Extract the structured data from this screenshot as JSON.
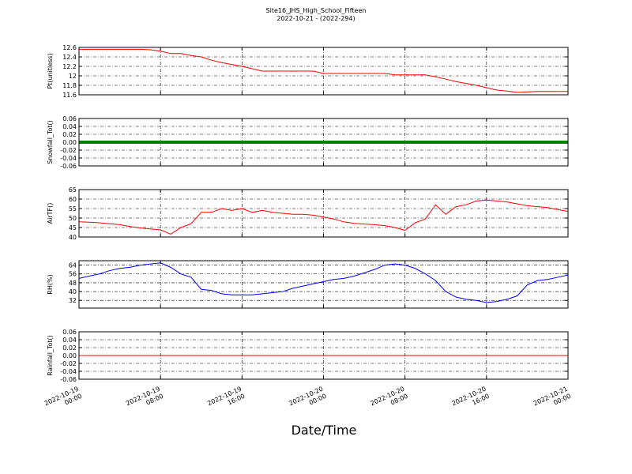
{
  "chart_data": [
    {
      "type": "line",
      "title": "Site16_JHS_High_School_Fifteen",
      "subtitle": "2022-10-21 - (2022-294)",
      "ylabel": "Pt(unitless)",
      "ylim": [
        11.6,
        12.6
      ],
      "yticks": [
        11.6,
        11.8,
        12.0,
        12.2,
        12.4,
        12.6
      ],
      "grid": true,
      "x": [
        "2022-10-19 00:00",
        "2022-10-19 01:00",
        "2022-10-19 02:00",
        "2022-10-19 03:00",
        "2022-10-19 04:00",
        "2022-10-19 05:00",
        "2022-10-19 06:00",
        "2022-10-19 07:00",
        "2022-10-19 08:00",
        "2022-10-19 09:00",
        "2022-10-19 10:00",
        "2022-10-19 11:00",
        "2022-10-19 12:00",
        "2022-10-19 13:00",
        "2022-10-19 14:00",
        "2022-10-19 15:00",
        "2022-10-19 16:00",
        "2022-10-19 17:00",
        "2022-10-19 18:00",
        "2022-10-19 19:00",
        "2022-10-19 20:00",
        "2022-10-19 21:00",
        "2022-10-19 22:00",
        "2022-10-19 23:00",
        "2022-10-20 00:00",
        "2022-10-20 01:00",
        "2022-10-20 02:00",
        "2022-10-20 03:00",
        "2022-10-20 04:00",
        "2022-10-20 05:00",
        "2022-10-20 06:00",
        "2022-10-20 07:00",
        "2022-10-20 08:00",
        "2022-10-20 09:00",
        "2022-10-20 10:00",
        "2022-10-20 11:00",
        "2022-10-20 12:00",
        "2022-10-20 13:00",
        "2022-10-20 14:00",
        "2022-10-20 15:00",
        "2022-10-20 16:00",
        "2022-10-20 17:00",
        "2022-10-20 18:00",
        "2022-10-20 19:00",
        "2022-10-20 20:00",
        "2022-10-20 21:00",
        "2022-10-20 22:00",
        "2022-10-20 23:00",
        "2022-10-21 00:00"
      ],
      "series": [
        {
          "color": "#ff0000",
          "values": [
            12.56,
            12.56,
            12.56,
            12.56,
            12.56,
            12.56,
            12.56,
            12.55,
            12.52,
            12.47,
            12.47,
            12.43,
            12.4,
            12.33,
            12.28,
            12.24,
            12.2,
            12.15,
            12.1,
            12.1,
            12.1,
            12.1,
            12.1,
            12.1,
            12.05,
            12.05,
            12.05,
            12.05,
            12.05,
            12.05,
            12.05,
            12.02,
            12.02,
            12.02,
            12.02,
            11.98,
            11.93,
            11.88,
            11.84,
            11.8,
            11.75,
            11.7,
            11.68,
            11.65,
            11.66,
            11.67,
            11.67,
            11.67,
            11.67
          ]
        }
      ]
    },
    {
      "type": "line",
      "ylabel": "Snowfall_Tot()",
      "ylim": [
        -0.06,
        0.06
      ],
      "yticks": [
        -0.06,
        -0.04,
        -0.02,
        {
          "value": 0,
          "label": "0.00"
        },
        0.02,
        0.04,
        0.06
      ],
      "grid": true,
      "x": [
        "2022-10-19 00:00",
        "2022-10-19 01:00",
        "2022-10-19 02:00",
        "2022-10-19 03:00",
        "2022-10-19 04:00",
        "2022-10-19 05:00",
        "2022-10-19 06:00",
        "2022-10-19 07:00",
        "2022-10-19 08:00",
        "2022-10-19 09:00",
        "2022-10-19 10:00",
        "2022-10-19 11:00",
        "2022-10-19 12:00",
        "2022-10-19 13:00",
        "2022-10-19 14:00",
        "2022-10-19 15:00",
        "2022-10-19 16:00",
        "2022-10-19 17:00",
        "2022-10-19 18:00",
        "2022-10-19 19:00",
        "2022-10-19 20:00",
        "2022-10-19 21:00",
        "2022-10-19 22:00",
        "2022-10-19 23:00",
        "2022-10-20 00:00",
        "2022-10-20 01:00",
        "2022-10-20 02:00",
        "2022-10-20 03:00",
        "2022-10-20 04:00",
        "2022-10-20 05:00",
        "2022-10-20 06:00",
        "2022-10-20 07:00",
        "2022-10-20 08:00",
        "2022-10-20 09:00",
        "2022-10-20 10:00",
        "2022-10-20 11:00",
        "2022-10-20 12:00",
        "2022-10-20 13:00",
        "2022-10-20 14:00",
        "2022-10-20 15:00",
        "2022-10-20 16:00",
        "2022-10-20 17:00",
        "2022-10-20 18:00",
        "2022-10-20 19:00",
        "2022-10-20 20:00",
        "2022-10-20 21:00",
        "2022-10-20 22:00",
        "2022-10-20 23:00",
        "2022-10-21 00:00"
      ],
      "series": [
        {
          "color": "#008000",
          "width": 4,
          "values": [
            0,
            0,
            0,
            0,
            0,
            0,
            0,
            0,
            0,
            0,
            0,
            0,
            0,
            0,
            0,
            0,
            0,
            0,
            0,
            0,
            0,
            0,
            0,
            0,
            0,
            0,
            0,
            0,
            0,
            0,
            0,
            0,
            0,
            0,
            0,
            0,
            0,
            0,
            0,
            0,
            0,
            0,
            0,
            0,
            0,
            0,
            0,
            0,
            0
          ]
        }
      ]
    },
    {
      "type": "line",
      "ylabel": "AirTF()",
      "ylim": [
        40,
        65
      ],
      "yticks": [
        40,
        45,
        50,
        55,
        60,
        65
      ],
      "grid": true,
      "x": [
        "2022-10-19 00:00",
        "2022-10-19 01:00",
        "2022-10-19 02:00",
        "2022-10-19 03:00",
        "2022-10-19 04:00",
        "2022-10-19 05:00",
        "2022-10-19 06:00",
        "2022-10-19 07:00",
        "2022-10-19 08:00",
        "2022-10-19 09:00",
        "2022-10-19 10:00",
        "2022-10-19 11:00",
        "2022-10-19 12:00",
        "2022-10-19 13:00",
        "2022-10-19 14:00",
        "2022-10-19 15:00",
        "2022-10-19 16:00",
        "2022-10-19 17:00",
        "2022-10-19 18:00",
        "2022-10-19 19:00",
        "2022-10-19 20:00",
        "2022-10-19 21:00",
        "2022-10-19 22:00",
        "2022-10-19 23:00",
        "2022-10-20 00:00",
        "2022-10-20 01:00",
        "2022-10-20 02:00",
        "2022-10-20 03:00",
        "2022-10-20 04:00",
        "2022-10-20 05:00",
        "2022-10-20 06:00",
        "2022-10-20 07:00",
        "2022-10-20 08:00",
        "2022-10-20 09:00",
        "2022-10-20 10:00",
        "2022-10-20 11:00",
        "2022-10-20 12:00",
        "2022-10-20 13:00",
        "2022-10-20 14:00",
        "2022-10-20 15:00",
        "2022-10-20 16:00",
        "2022-10-20 17:00",
        "2022-10-20 18:00",
        "2022-10-20 19:00",
        "2022-10-20 20:00",
        "2022-10-20 21:00",
        "2022-10-20 22:00",
        "2022-10-20 23:00",
        "2022-10-21 00:00"
      ],
      "series": [
        {
          "color": "#ff0000",
          "values": [
            48,
            47.8,
            47.5,
            47,
            46.5,
            45.5,
            44.8,
            44.2,
            43.8,
            41.5,
            45,
            47,
            53,
            53,
            55,
            54,
            55,
            53,
            54,
            53,
            52.5,
            52,
            52,
            51.5,
            50.5,
            49.5,
            48,
            47.2,
            46.8,
            46.5,
            46,
            45,
            43.5,
            47.5,
            49.5,
            57,
            52,
            56,
            57,
            59,
            59.5,
            59,
            58.5,
            57.5,
            56.5,
            56,
            55.5,
            54.5,
            53.5
          ]
        }
      ]
    },
    {
      "type": "line",
      "ylabel": "RH(%)",
      "ylim": [
        25,
        68
      ],
      "yticks": [
        32,
        40,
        48,
        56,
        64
      ],
      "grid": true,
      "x": [
        "2022-10-19 00:00",
        "2022-10-19 01:00",
        "2022-10-19 02:00",
        "2022-10-19 03:00",
        "2022-10-19 04:00",
        "2022-10-19 05:00",
        "2022-10-19 06:00",
        "2022-10-19 07:00",
        "2022-10-19 08:00",
        "2022-10-19 09:00",
        "2022-10-19 10:00",
        "2022-10-19 11:00",
        "2022-10-19 12:00",
        "2022-10-19 13:00",
        "2022-10-19 14:00",
        "2022-10-19 15:00",
        "2022-10-19 16:00",
        "2022-10-19 17:00",
        "2022-10-19 18:00",
        "2022-10-19 19:00",
        "2022-10-19 20:00",
        "2022-10-19 21:00",
        "2022-10-19 22:00",
        "2022-10-19 23:00",
        "2022-10-20 00:00",
        "2022-10-20 01:00",
        "2022-10-20 02:00",
        "2022-10-20 03:00",
        "2022-10-20 04:00",
        "2022-10-20 05:00",
        "2022-10-20 06:00",
        "2022-10-20 07:00",
        "2022-10-20 08:00",
        "2022-10-20 09:00",
        "2022-10-20 10:00",
        "2022-10-20 11:00",
        "2022-10-20 12:00",
        "2022-10-20 13:00",
        "2022-10-20 14:00",
        "2022-10-20 15:00",
        "2022-10-20 16:00",
        "2022-10-20 17:00",
        "2022-10-20 18:00",
        "2022-10-20 19:00",
        "2022-10-20 20:00",
        "2022-10-20 21:00",
        "2022-10-20 22:00",
        "2022-10-20 23:00",
        "2022-10-21 00:00"
      ],
      "series": [
        {
          "color": "#0000ff",
          "values": [
            52,
            54,
            56,
            59,
            61,
            62,
            64,
            65,
            66,
            62,
            56,
            53,
            42,
            41,
            38,
            37,
            37,
            37,
            38,
            39,
            40,
            43,
            45,
            47,
            49,
            51,
            52,
            54,
            57,
            60,
            64,
            65,
            64,
            61,
            56,
            50,
            40,
            35,
            33,
            32,
            30,
            31,
            33,
            36,
            46,
            50,
            51,
            53,
            55
          ]
        }
      ]
    },
    {
      "type": "line",
      "ylabel": "Rainfall_Tot()",
      "xlabel": "Date/Time",
      "ylim": [
        -0.06,
        0.06
      ],
      "yticks": [
        -0.06,
        -0.04,
        -0.02,
        {
          "value": 0,
          "label": "0.00"
        },
        0.02,
        0.04,
        0.06
      ],
      "grid": true,
      "xlim": [
        "2022-10-19 00:00",
        "2022-10-21 00:00"
      ],
      "xticks": [
        "2022-10-19 00:00",
        "2022-10-19 08:00",
        "2022-10-19 16:00",
        "2022-10-20 00:00",
        "2022-10-20 08:00",
        "2022-10-20 16:00",
        "2022-10-21 00:00"
      ],
      "x": [
        "2022-10-19 00:00",
        "2022-10-19 01:00",
        "2022-10-19 02:00",
        "2022-10-19 03:00",
        "2022-10-19 04:00",
        "2022-10-19 05:00",
        "2022-10-19 06:00",
        "2022-10-19 07:00",
        "2022-10-19 08:00",
        "2022-10-19 09:00",
        "2022-10-19 10:00",
        "2022-10-19 11:00",
        "2022-10-19 12:00",
        "2022-10-19 13:00",
        "2022-10-19 14:00",
        "2022-10-19 15:00",
        "2022-10-19 16:00",
        "2022-10-19 17:00",
        "2022-10-19 18:00",
        "2022-10-19 19:00",
        "2022-10-19 20:00",
        "2022-10-19 21:00",
        "2022-10-19 22:00",
        "2022-10-19 23:00",
        "2022-10-20 00:00",
        "2022-10-20 01:00",
        "2022-10-20 02:00",
        "2022-10-20 03:00",
        "2022-10-20 04:00",
        "2022-10-20 05:00",
        "2022-10-20 06:00",
        "2022-10-20 07:00",
        "2022-10-20 08:00",
        "2022-10-20 09:00",
        "2022-10-20 10:00",
        "2022-10-20 11:00",
        "2022-10-20 12:00",
        "2022-10-20 13:00",
        "2022-10-20 14:00",
        "2022-10-20 15:00",
        "2022-10-20 16:00",
        "2022-10-20 17:00",
        "2022-10-20 18:00",
        "2022-10-20 19:00",
        "2022-10-20 20:00",
        "2022-10-20 21:00",
        "2022-10-20 22:00",
        "2022-10-20 23:00",
        "2022-10-21 00:00"
      ],
      "series": [
        {
          "color": "#ff0000",
          "values": [
            0,
            0,
            0,
            0,
            0,
            0,
            0,
            0,
            0,
            0,
            0,
            0,
            0,
            0,
            0,
            0,
            0,
            0,
            0,
            0,
            0,
            0,
            0,
            0,
            0,
            0,
            0,
            0,
            0,
            0,
            0,
            0,
            0,
            0,
            0,
            0,
            0,
            0,
            0,
            0,
            0,
            0,
            0,
            0,
            0,
            0,
            0,
            0,
            0
          ]
        }
      ]
    }
  ]
}
